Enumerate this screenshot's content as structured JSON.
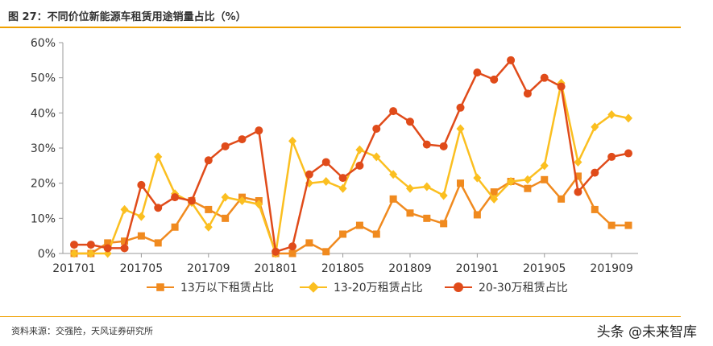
{
  "header": {
    "title": "图 27：不同价位新能源车租赁用途销量占比（%）"
  },
  "footer": {
    "source": "资料来源：交强险，天风证券研究所",
    "watermark": "头条 @未来智库"
  },
  "colors": {
    "accent": "#f0a000",
    "series": [
      "#f08a1f",
      "#fbbf20",
      "#e04b1a"
    ]
  },
  "chart_data": {
    "type": "line",
    "x": [
      "201701",
      "201702",
      "201703",
      "201704",
      "201705",
      "201706",
      "201707",
      "201708",
      "201709",
      "201710",
      "201711",
      "201712",
      "201801",
      "201802",
      "201803",
      "201804",
      "201805",
      "201806",
      "201807",
      "201808",
      "201809",
      "201810",
      "201811",
      "201812",
      "201901",
      "201902",
      "201903",
      "201904",
      "201905",
      "201906",
      "201907",
      "201908",
      "201909",
      "201910"
    ],
    "x_tick_labels": [
      "201701",
      "201705",
      "201709",
      "201801",
      "201805",
      "201809",
      "201901",
      "201905",
      "201909"
    ],
    "y_tick_labels": [
      "0%",
      "10%",
      "20%",
      "30%",
      "40%",
      "50%",
      "60%"
    ],
    "ylim": [
      0,
      60
    ],
    "y_unit": "%",
    "legend_position": "bottom",
    "grid": false,
    "series": [
      {
        "name": "13万以下租赁占比",
        "marker": "square",
        "values": [
          0,
          0,
          3,
          3.5,
          5,
          3,
          7.5,
          15,
          12.5,
          10,
          16,
          15,
          0,
          0,
          3,
          0.5,
          5.5,
          8,
          5.5,
          15.5,
          11.5,
          10,
          8.5,
          20,
          11,
          17.5,
          20.5,
          18.5,
          21,
          15.5,
          22,
          12.5,
          8,
          8
        ]
      },
      {
        "name": "13-20万租赁占比",
        "marker": "diamond",
        "values": [
          0,
          0,
          0,
          12.5,
          10.5,
          27.5,
          17,
          14.5,
          7.5,
          16,
          15,
          14,
          0,
          32,
          20,
          20.5,
          18.5,
          29.5,
          27.5,
          22.5,
          18.5,
          19,
          16.5,
          35.5,
          21.5,
          15.5,
          20.5,
          21,
          25,
          48.5,
          26,
          36,
          39.5,
          38.5
        ]
      },
      {
        "name": "20-30万租赁占比",
        "marker": "circle",
        "values": [
          2.5,
          2.5,
          1.5,
          1.5,
          19.5,
          13,
          16,
          15,
          26.5,
          30.5,
          32.5,
          35,
          0.5,
          2,
          22.5,
          26,
          21.5,
          25,
          35.5,
          40.5,
          37.5,
          31,
          30.5,
          41.5,
          51.5,
          49.5,
          55,
          45.5,
          50,
          47.5,
          17.5,
          23,
          27.5,
          28.5
        ]
      }
    ]
  }
}
